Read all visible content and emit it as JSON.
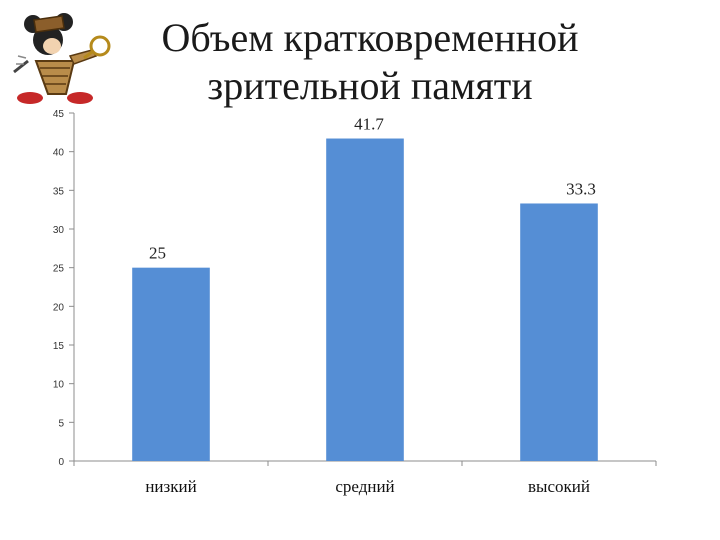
{
  "chart_data": {
    "type": "bar",
    "title": [
      "Объем кратковременной",
      "зрительной памяти"
    ],
    "categories": [
      "низкий",
      "средний",
      "высокий"
    ],
    "values": [
      25,
      41.7,
      33.3
    ],
    "data_labels": [
      "25",
      "41.7",
      "33.3"
    ],
    "ylim": [
      0,
      45
    ],
    "y_ticks": [
      0,
      5,
      10,
      15,
      20,
      25,
      30,
      35,
      40,
      45
    ],
    "bar_color": "#558ED5",
    "grid": false,
    "legend": "none"
  },
  "logo_icon": "cartoon-mouse-clipart"
}
